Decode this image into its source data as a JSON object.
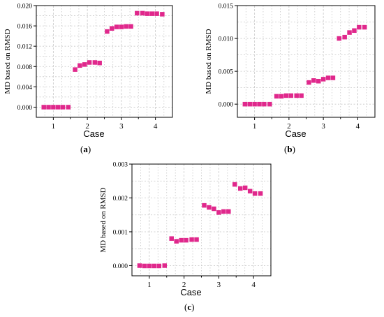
{
  "panel_labels": [
    {
      "open": "(",
      "letter": "a",
      "close": ")"
    },
    {
      "open": "(",
      "letter": "b",
      "close": ")"
    },
    {
      "open": "(",
      "letter": "c",
      "close": ")"
    }
  ],
  "colors": {
    "marker": "#e0288c",
    "grid": "#c8c8c8",
    "axis": "#000000"
  },
  "chart_data": [
    {
      "type": "scatter",
      "xlabel": "Case",
      "ylabel": "MD based on RMSD",
      "xlim": [
        0.5,
        4.5
      ],
      "ylim": [
        -0.002,
        0.02
      ],
      "xticks": [
        "1",
        "2",
        "3",
        "4"
      ],
      "yticks": [
        "0.000",
        "0.004",
        "0.008",
        "0.012",
        "0.016",
        "0.020"
      ],
      "grid": true,
      "x": [
        0.72,
        0.86,
        1.0,
        1.14,
        1.28,
        1.44,
        1.64,
        1.78,
        1.92,
        2.06,
        2.22,
        2.36,
        2.58,
        2.72,
        2.86,
        3.0,
        3.14,
        3.28,
        3.46,
        3.62,
        3.76,
        3.9,
        4.04,
        4.2
      ],
      "y": [
        0.0,
        0.0,
        0.0,
        0.0,
        0.0,
        0.0,
        0.0074,
        0.0082,
        0.0084,
        0.0088,
        0.0088,
        0.0087,
        0.0149,
        0.0155,
        0.0158,
        0.0158,
        0.0159,
        0.0159,
        0.0185,
        0.0185,
        0.0184,
        0.0184,
        0.0184,
        0.0183
      ]
    },
    {
      "type": "scatter",
      "xlabel": "Case",
      "ylabel": "MD based on RMSD",
      "xlim": [
        0.5,
        4.5
      ],
      "ylim": [
        -0.002,
        0.015
      ],
      "xticks": [
        "1",
        "2",
        "3",
        "4"
      ],
      "yticks": [
        "0.000",
        "0.005",
        "0.010",
        "0.015"
      ],
      "grid": true,
      "x": [
        0.72,
        0.86,
        1.0,
        1.14,
        1.28,
        1.44,
        1.64,
        1.78,
        1.92,
        2.06,
        2.22,
        2.36,
        2.58,
        2.72,
        2.86,
        3.0,
        3.14,
        3.28,
        3.46,
        3.62,
        3.76,
        3.9,
        4.04,
        4.2
      ],
      "y": [
        0.0,
        0.0,
        0.0,
        0.0,
        0.0,
        0.0,
        0.0012,
        0.0012,
        0.0013,
        0.0013,
        0.0013,
        0.0013,
        0.0033,
        0.0036,
        0.0035,
        0.0038,
        0.004,
        0.004,
        0.01,
        0.0102,
        0.0109,
        0.0112,
        0.0117,
        0.0117
      ]
    },
    {
      "type": "scatter",
      "xlabel": "Case",
      "ylabel": "MD based on RMSD",
      "xlim": [
        0.5,
        4.5
      ],
      "ylim": [
        -0.0003,
        0.003
      ],
      "xticks": [
        "1",
        "2",
        "3",
        "4"
      ],
      "yticks": [
        "0.000",
        "0.001",
        "0.002",
        "0.003"
      ],
      "grid": true,
      "x": [
        0.72,
        0.86,
        1.0,
        1.14,
        1.28,
        1.44,
        1.64,
        1.78,
        1.92,
        2.06,
        2.22,
        2.36,
        2.58,
        2.72,
        2.86,
        3.0,
        3.14,
        3.28,
        3.46,
        3.62,
        3.76,
        3.9,
        4.04,
        4.2
      ],
      "y": [
        0.0,
        -1e-05,
        -1e-05,
        -1e-05,
        -1e-05,
        0.0,
        0.0008,
        0.00072,
        0.00075,
        0.00075,
        0.00077,
        0.00077,
        0.00178,
        0.00172,
        0.00168,
        0.00157,
        0.0016,
        0.0016,
        0.0024,
        0.00228,
        0.0023,
        0.0022,
        0.00213,
        0.00213
      ]
    }
  ]
}
